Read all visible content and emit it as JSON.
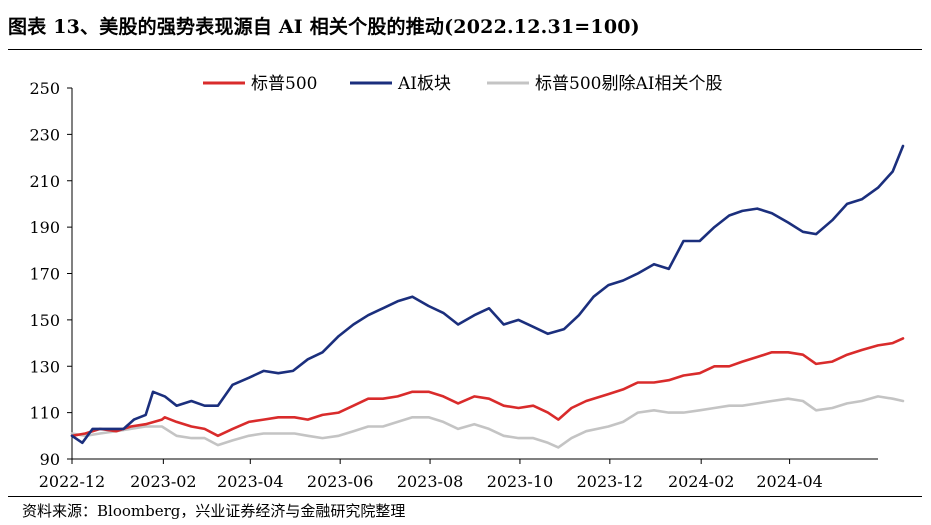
{
  "header": {
    "title": "图表 13、美股的强势表现源自 AI 相关个股的推动(2022.12.31=100)"
  },
  "footer": {
    "source": "资料来源：Bloomberg，兴业证券经济与金融研究院整理"
  },
  "chart_data": {
    "type": "line",
    "title": "图表 13、美股的强势表现源自 AI 相关个股的推动(2022.12.31=100)",
    "xlabel": "",
    "ylabel": "",
    "ylim": [
      90,
      250
    ],
    "yticks": [
      90,
      110,
      130,
      150,
      170,
      190,
      210,
      230,
      250
    ],
    "xlim": [
      "2022-12-01",
      "2024-05-31"
    ],
    "xticks": [
      "2022-12",
      "2023-02",
      "2023-04",
      "2023-06",
      "2023-08",
      "2023-10",
      "2023-12",
      "2024-02",
      "2024-04"
    ],
    "legend": "top-center",
    "grid": false,
    "series": [
      {
        "name": "标普500",
        "color": "#d92b2b",
        "points": [
          [
            "2022-12-01",
            100
          ],
          [
            "2022-12-10",
            101
          ],
          [
            "2022-12-20",
            103
          ],
          [
            "2022-12-31",
            102
          ],
          [
            "2023-01-10",
            104
          ],
          [
            "2023-01-20",
            105
          ],
          [
            "2023-01-31",
            107
          ],
          [
            "2023-02-02",
            108
          ],
          [
            "2023-02-10",
            106
          ],
          [
            "2023-02-20",
            104
          ],
          [
            "2023-03-01",
            103
          ],
          [
            "2023-03-10",
            100
          ],
          [
            "2023-03-20",
            103
          ],
          [
            "2023-03-31",
            106
          ],
          [
            "2023-04-10",
            107
          ],
          [
            "2023-04-20",
            108
          ],
          [
            "2023-05-01",
            108
          ],
          [
            "2023-05-10",
            107
          ],
          [
            "2023-05-20",
            109
          ],
          [
            "2023-05-31",
            110
          ],
          [
            "2023-06-10",
            113
          ],
          [
            "2023-06-20",
            116
          ],
          [
            "2023-06-30",
            116
          ],
          [
            "2023-07-10",
            117
          ],
          [
            "2023-07-20",
            119
          ],
          [
            "2023-07-31",
            119
          ],
          [
            "2023-08-10",
            117
          ],
          [
            "2023-08-20",
            114
          ],
          [
            "2023-08-31",
            117
          ],
          [
            "2023-09-10",
            116
          ],
          [
            "2023-09-20",
            113
          ],
          [
            "2023-09-30",
            112
          ],
          [
            "2023-10-10",
            113
          ],
          [
            "2023-10-20",
            110
          ],
          [
            "2023-10-27",
            107
          ],
          [
            "2023-11-05",
            112
          ],
          [
            "2023-11-15",
            115
          ],
          [
            "2023-11-30",
            118
          ],
          [
            "2023-12-10",
            120
          ],
          [
            "2023-12-20",
            123
          ],
          [
            "2023-12-31",
            123
          ],
          [
            "2024-01-10",
            124
          ],
          [
            "2024-01-20",
            126
          ],
          [
            "2024-01-31",
            127
          ],
          [
            "2024-02-10",
            130
          ],
          [
            "2024-02-20",
            130
          ],
          [
            "2024-02-29",
            132
          ],
          [
            "2024-03-10",
            134
          ],
          [
            "2024-03-20",
            136
          ],
          [
            "2024-03-31",
            136
          ],
          [
            "2024-04-10",
            135
          ],
          [
            "2024-04-19",
            131
          ],
          [
            "2024-04-30",
            132
          ],
          [
            "2024-05-10",
            135
          ],
          [
            "2024-05-20",
            137
          ],
          [
            "2024-05-31",
            139
          ],
          [
            "2024-06-10",
            140
          ],
          [
            "2024-06-17",
            142
          ]
        ]
      },
      {
        "name": "AI板块",
        "color": "#1b2f7d",
        "points": [
          [
            "2022-12-01",
            100
          ],
          [
            "2022-12-08",
            97
          ],
          [
            "2022-12-15",
            103
          ],
          [
            "2022-12-25",
            103
          ],
          [
            "2023-01-05",
            103
          ],
          [
            "2023-01-12",
            107
          ],
          [
            "2023-01-20",
            109
          ],
          [
            "2023-01-25",
            119
          ],
          [
            "2023-02-02",
            117
          ],
          [
            "2023-02-10",
            113
          ],
          [
            "2023-02-20",
            115
          ],
          [
            "2023-03-01",
            113
          ],
          [
            "2023-03-10",
            113
          ],
          [
            "2023-03-20",
            122
          ],
          [
            "2023-03-31",
            125
          ],
          [
            "2023-04-10",
            128
          ],
          [
            "2023-04-20",
            127
          ],
          [
            "2023-04-30",
            128
          ],
          [
            "2023-05-10",
            133
          ],
          [
            "2023-05-20",
            136
          ],
          [
            "2023-05-31",
            143
          ],
          [
            "2023-06-10",
            148
          ],
          [
            "2023-06-20",
            152
          ],
          [
            "2023-06-30",
            155
          ],
          [
            "2023-07-10",
            158
          ],
          [
            "2023-07-20",
            160
          ],
          [
            "2023-07-31",
            156
          ],
          [
            "2023-08-10",
            153
          ],
          [
            "2023-08-20",
            148
          ],
          [
            "2023-08-31",
            152
          ],
          [
            "2023-09-10",
            155
          ],
          [
            "2023-09-20",
            148
          ],
          [
            "2023-09-30",
            150
          ],
          [
            "2023-10-10",
            147
          ],
          [
            "2023-10-20",
            144
          ],
          [
            "2023-10-31",
            146
          ],
          [
            "2023-11-10",
            152
          ],
          [
            "2023-11-20",
            160
          ],
          [
            "2023-11-30",
            165
          ],
          [
            "2023-12-10",
            167
          ],
          [
            "2023-12-20",
            170
          ],
          [
            "2023-12-31",
            174
          ],
          [
            "2024-01-10",
            172
          ],
          [
            "2024-01-20",
            184
          ],
          [
            "2024-01-31",
            184
          ],
          [
            "2024-02-10",
            190
          ],
          [
            "2024-02-20",
            195
          ],
          [
            "2024-02-29",
            197
          ],
          [
            "2024-03-10",
            198
          ],
          [
            "2024-03-20",
            196
          ],
          [
            "2024-03-31",
            192
          ],
          [
            "2024-04-10",
            188
          ],
          [
            "2024-04-19",
            187
          ],
          [
            "2024-04-30",
            193
          ],
          [
            "2024-05-10",
            200
          ],
          [
            "2024-05-20",
            202
          ],
          [
            "2024-05-31",
            207
          ],
          [
            "2024-06-10",
            214
          ],
          [
            "2024-06-17",
            225
          ]
        ]
      },
      {
        "name": "标普500剔除AI相关个股",
        "color": "#c4c4c4",
        "points": [
          [
            "2022-12-01",
            101
          ],
          [
            "2022-12-10",
            100
          ],
          [
            "2022-12-20",
            101
          ],
          [
            "2022-12-31",
            102
          ],
          [
            "2023-01-10",
            103
          ],
          [
            "2023-01-20",
            104
          ],
          [
            "2023-01-31",
            104
          ],
          [
            "2023-02-10",
            100
          ],
          [
            "2023-02-20",
            99
          ],
          [
            "2023-03-01",
            99
          ],
          [
            "2023-03-10",
            96
          ],
          [
            "2023-03-20",
            98
          ],
          [
            "2023-03-31",
            100
          ],
          [
            "2023-04-10",
            101
          ],
          [
            "2023-04-20",
            101
          ],
          [
            "2023-05-01",
            101
          ],
          [
            "2023-05-10",
            100
          ],
          [
            "2023-05-20",
            99
          ],
          [
            "2023-05-31",
            100
          ],
          [
            "2023-06-10",
            102
          ],
          [
            "2023-06-20",
            104
          ],
          [
            "2023-06-30",
            104
          ],
          [
            "2023-07-10",
            106
          ],
          [
            "2023-07-20",
            108
          ],
          [
            "2023-07-31",
            108
          ],
          [
            "2023-08-10",
            106
          ],
          [
            "2023-08-20",
            103
          ],
          [
            "2023-08-31",
            105
          ],
          [
            "2023-09-10",
            103
          ],
          [
            "2023-09-20",
            100
          ],
          [
            "2023-09-30",
            99
          ],
          [
            "2023-10-10",
            99
          ],
          [
            "2023-10-20",
            97
          ],
          [
            "2023-10-27",
            95
          ],
          [
            "2023-11-05",
            99
          ],
          [
            "2023-11-15",
            102
          ],
          [
            "2023-11-30",
            104
          ],
          [
            "2023-12-10",
            106
          ],
          [
            "2023-12-20",
            110
          ],
          [
            "2023-12-31",
            111
          ],
          [
            "2024-01-10",
            110
          ],
          [
            "2024-01-20",
            110
          ],
          [
            "2024-01-31",
            111
          ],
          [
            "2024-02-10",
            112
          ],
          [
            "2024-02-20",
            113
          ],
          [
            "2024-02-29",
            113
          ],
          [
            "2024-03-10",
            114
          ],
          [
            "2024-03-20",
            115
          ],
          [
            "2024-03-31",
            116
          ],
          [
            "2024-04-10",
            115
          ],
          [
            "2024-04-19",
            111
          ],
          [
            "2024-04-30",
            112
          ],
          [
            "2024-05-10",
            114
          ],
          [
            "2024-05-20",
            115
          ],
          [
            "2024-05-31",
            117
          ],
          [
            "2024-06-10",
            116
          ],
          [
            "2024-06-17",
            115
          ]
        ]
      }
    ]
  }
}
